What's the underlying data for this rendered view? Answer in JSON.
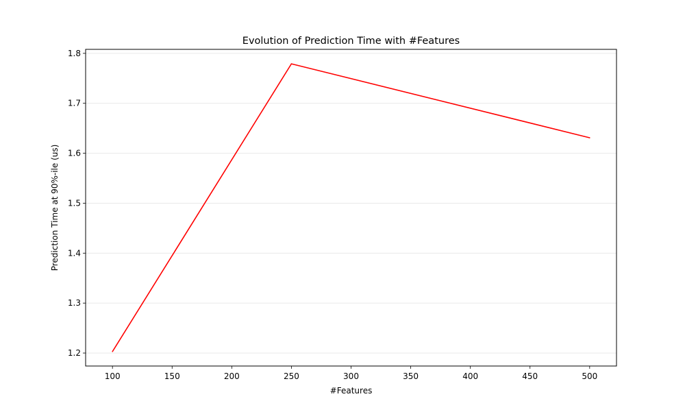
{
  "chart_data": {
    "type": "line",
    "title": "Evolution of Prediction Time with #Features",
    "xlabel": "#Features",
    "ylabel": "Prediction Time at 90%-ile (us)",
    "x": [
      100,
      250,
      500
    ],
    "series": [
      {
        "values": [
          1.203,
          1.779,
          1.631
        ],
        "color": "#ff0000"
      }
    ],
    "xlim": [
      77.5,
      522.5
    ],
    "ylim": [
      1.174,
      1.808
    ],
    "x_ticks": [
      100,
      150,
      200,
      250,
      300,
      350,
      400,
      450,
      500
    ],
    "y_ticks": [
      1.2,
      1.3,
      1.4,
      1.5,
      1.6,
      1.7,
      1.8
    ],
    "x_tick_labels": [
      "100",
      "150",
      "200",
      "250",
      "300",
      "350",
      "400",
      "450",
      "500"
    ],
    "y_tick_labels": [
      "1.2",
      "1.3",
      "1.4",
      "1.5",
      "1.6",
      "1.7",
      "1.8"
    ],
    "grid": {
      "y": true,
      "x": false,
      "color": "#e6e6e6"
    },
    "legend": "none"
  }
}
